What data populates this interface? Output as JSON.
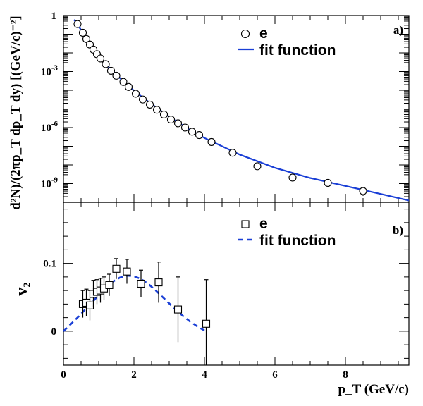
{
  "chart_data": [
    {
      "type": "scatter",
      "panel_tag": "a)",
      "ylabel": "d²N)/(2πp_T dp_T dy) [(GeV/c)⁻²]",
      "yscale": "log",
      "xlim": [
        0,
        9.8
      ],
      "ylim": [
        1e-10,
        1
      ],
      "yticks": [
        {
          "value": 1,
          "label": "1"
        },
        {
          "value": 0.001,
          "label": "10-3"
        },
        {
          "value": 1e-06,
          "label": "10-6"
        },
        {
          "value": 1e-09,
          "label": "10-9"
        }
      ],
      "legend": {
        "position": "top-right",
        "marker_label": "e",
        "line_label": "fit function"
      },
      "series": [
        {
          "name": "e",
          "marker": "open-circle",
          "x": [
            0.4,
            0.55,
            0.65,
            0.75,
            0.85,
            0.95,
            1.05,
            1.2,
            1.35,
            1.5,
            1.7,
            1.85,
            2.05,
            2.25,
            2.45,
            2.65,
            2.85,
            3.05,
            3.25,
            3.45,
            3.65,
            3.85,
            4.2,
            4.8,
            5.5,
            6.5,
            7.5,
            8.5
          ],
          "y": [
            0.35,
            0.12,
            0.055,
            0.028,
            0.015,
            0.0085,
            0.005,
            0.0025,
            0.0011,
            0.0006,
            0.00028,
            0.00015,
            6.5e-05,
            3.2e-05,
            1.7e-05,
            9e-06,
            5e-06,
            2.7e-06,
            1.7e-06,
            1e-06,
            6e-07,
            4e-07,
            1.7e-07,
            4.5e-08,
            8.5e-09,
            2.1e-09,
            1.1e-09,
            4e-10
          ],
          "err_low": [
            null,
            null,
            null,
            null,
            null,
            null,
            null,
            null,
            null,
            null,
            null,
            null,
            null,
            null,
            null,
            null,
            null,
            null,
            null,
            null,
            null,
            null,
            null,
            null,
            null,
            1.3e-09,
            null,
            2.2e-10
          ],
          "err_high": [
            null,
            null,
            null,
            null,
            null,
            null,
            null,
            null,
            null,
            null,
            null,
            null,
            null,
            null,
            null,
            null,
            null,
            null,
            null,
            null,
            null,
            null,
            null,
            null,
            null,
            3e-09,
            null,
            6.5e-10
          ]
        },
        {
          "name": "fit function",
          "line": "solid",
          "color": "#1a3fd6",
          "x": [
            0.3,
            0.5,
            0.8,
            1.2,
            1.6,
            2.0,
            2.5,
            3.0,
            3.5,
            4.0,
            5.0,
            6.0,
            7.0,
            8.0,
            9.0,
            9.8
          ],
          "y": [
            0.6,
            0.17,
            0.02,
            0.0025,
            0.00045,
            9.5e-05,
            1.8e-05,
            3.8e-06,
            9.5e-07,
            2.8e-07,
            3.6e-08,
            7e-09,
            2e-09,
            7.5e-10,
            2.8e-10,
            1.25e-10
          ]
        }
      ]
    },
    {
      "type": "scatter",
      "panel_tag": "b)",
      "ylabel": "v₂",
      "xlabel": "p_T (GeV/c)",
      "xlim": [
        0,
        9.8
      ],
      "ylim": [
        -0.05,
        0.19
      ],
      "xticks": [
        0,
        2,
        4,
        6,
        8
      ],
      "yticks": [
        {
          "value": 0,
          "label": "0"
        },
        {
          "value": 0.1,
          "label": "0.1"
        }
      ],
      "legend": {
        "position": "top-right",
        "marker_label": "e",
        "line_label": "fit function"
      },
      "series": [
        {
          "name": "e",
          "marker": "open-square",
          "x": [
            0.55,
            0.65,
            0.75,
            0.85,
            0.95,
            1.05,
            1.15,
            1.3,
            1.5,
            1.8,
            2.2,
            2.7,
            3.25,
            4.05
          ],
          "y": [
            0.04,
            0.042,
            0.038,
            0.055,
            0.058,
            0.06,
            0.063,
            0.068,
            0.092,
            0.088,
            0.07,
            0.072,
            0.032,
            0.011
          ],
          "err": [
            0.02,
            0.02,
            0.022,
            0.02,
            0.018,
            0.018,
            0.017,
            0.016,
            0.015,
            0.018,
            0.02,
            0.03,
            0.048,
            0.065
          ]
        },
        {
          "name": "fit function",
          "line": "dashed",
          "color": "#1a3fd6",
          "x": [
            0.0,
            0.2,
            0.4,
            0.6,
            0.8,
            1.0,
            1.2,
            1.4,
            1.6,
            1.8,
            2.0,
            2.2,
            2.4,
            2.6,
            2.8,
            3.0,
            3.2,
            3.4,
            3.6,
            3.8,
            4.0
          ],
          "y": [
            0.0,
            0.01,
            0.02,
            0.031,
            0.042,
            0.053,
            0.064,
            0.073,
            0.079,
            0.082,
            0.081,
            0.077,
            0.07,
            0.061,
            0.051,
            0.041,
            0.031,
            0.022,
            0.014,
            0.007,
            0.001
          ]
        }
      ]
    }
  ]
}
